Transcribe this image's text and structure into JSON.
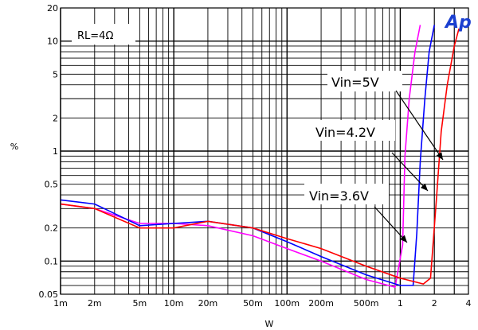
{
  "chart_data": {
    "type": "line",
    "title": "",
    "xlabel": "W",
    "ylabel": "%",
    "x_scale": "log",
    "y_scale": "log",
    "xlim": [
      0.001,
      4
    ],
    "ylim": [
      0.05,
      20
    ],
    "grid": true,
    "x_ticks": [
      {
        "value": 0.001,
        "label": "1m"
      },
      {
        "value": 0.002,
        "label": "2m"
      },
      {
        "value": 0.005,
        "label": "5m"
      },
      {
        "value": 0.01,
        "label": "10m"
      },
      {
        "value": 0.02,
        "label": "20m"
      },
      {
        "value": 0.05,
        "label": "50m"
      },
      {
        "value": 0.1,
        "label": "100m"
      },
      {
        "value": 0.2,
        "label": "200m"
      },
      {
        "value": 0.5,
        "label": "500m"
      },
      {
        "value": 1,
        "label": "1"
      },
      {
        "value": 2,
        "label": "2"
      },
      {
        "value": 4,
        "label": "4"
      }
    ],
    "y_ticks": [
      {
        "value": 0.05,
        "label": "0.05"
      },
      {
        "value": 0.1,
        "label": "0.1"
      },
      {
        "value": 0.2,
        "label": "0.2"
      },
      {
        "value": 0.5,
        "label": "0.5"
      },
      {
        "value": 1,
        "label": "1"
      },
      {
        "value": 2,
        "label": "2"
      },
      {
        "value": 5,
        "label": "5"
      },
      {
        "value": 10,
        "label": "10"
      },
      {
        "value": 20,
        "label": "20"
      }
    ],
    "series": [
      {
        "name": "Vin=3.6V",
        "color": "#ff00ff",
        "points": [
          [
            0.001,
            0.33
          ],
          [
            0.002,
            0.3
          ],
          [
            0.005,
            0.22
          ],
          [
            0.01,
            0.22
          ],
          [
            0.02,
            0.21
          ],
          [
            0.05,
            0.17
          ],
          [
            0.1,
            0.13
          ],
          [
            0.2,
            0.1
          ],
          [
            0.5,
            0.068
          ],
          [
            0.9,
            0.058
          ],
          [
            1.05,
            0.14
          ],
          [
            1.1,
            0.9
          ],
          [
            1.2,
            3
          ],
          [
            1.35,
            8
          ],
          [
            1.5,
            14
          ]
        ]
      },
      {
        "name": "Vin=4.2V",
        "color": "#0000ff",
        "points": [
          [
            0.001,
            0.36
          ],
          [
            0.002,
            0.33
          ],
          [
            0.005,
            0.21
          ],
          [
            0.01,
            0.22
          ],
          [
            0.02,
            0.23
          ],
          [
            0.05,
            0.2
          ],
          [
            0.1,
            0.15
          ],
          [
            0.2,
            0.11
          ],
          [
            0.5,
            0.075
          ],
          [
            1,
            0.06
          ],
          [
            1.3,
            0.06
          ],
          [
            1.4,
            0.18
          ],
          [
            1.5,
            0.8
          ],
          [
            1.65,
            3
          ],
          [
            1.8,
            8
          ],
          [
            2,
            14
          ]
        ]
      },
      {
        "name": "Vin=5V",
        "color": "#ff0000",
        "points": [
          [
            0.001,
            0.33
          ],
          [
            0.002,
            0.3
          ],
          [
            0.005,
            0.2
          ],
          [
            0.01,
            0.2
          ],
          [
            0.02,
            0.23
          ],
          [
            0.05,
            0.2
          ],
          [
            0.1,
            0.16
          ],
          [
            0.2,
            0.13
          ],
          [
            0.5,
            0.09
          ],
          [
            1,
            0.07
          ],
          [
            1.6,
            0.062
          ],
          [
            1.85,
            0.07
          ],
          [
            2.1,
            0.4
          ],
          [
            2.3,
            1.5
          ],
          [
            2.6,
            4
          ],
          [
            3,
            9
          ],
          [
            3.3,
            13
          ]
        ]
      }
    ],
    "annotations": [
      {
        "text": "Vin=5V",
        "series": "Vin=5V"
      },
      {
        "text": "Vin=4.2V",
        "series": "Vin=4.2V"
      },
      {
        "text": "Vin=3.6V",
        "series": "Vin=3.6V"
      }
    ],
    "condition_label": "RL=4Ω",
    "logo_text": "Ap"
  }
}
